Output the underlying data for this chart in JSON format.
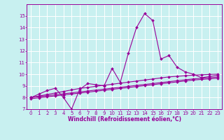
{
  "title": "",
  "xlabel": "Windchill (Refroidissement éolien,°C)",
  "background_color": "#c8f0f0",
  "grid_color": "#ffffff",
  "line_color": "#990099",
  "x_data": [
    0,
    1,
    2,
    3,
    4,
    5,
    6,
    7,
    8,
    9,
    10,
    11,
    12,
    13,
    14,
    15,
    16,
    17,
    18,
    19,
    20,
    21,
    22,
    23
  ],
  "series1": [
    8.0,
    8.3,
    8.6,
    8.8,
    8.0,
    7.0,
    8.7,
    9.2,
    9.1,
    9.0,
    10.5,
    9.3,
    11.8,
    14.0,
    15.2,
    14.6,
    11.3,
    11.6,
    10.6,
    10.2,
    10.0,
    9.7,
    9.8,
    9.9
  ],
  "series2": [
    8.0,
    8.13,
    8.26,
    8.39,
    8.52,
    8.65,
    8.78,
    8.87,
    8.96,
    9.05,
    9.14,
    9.23,
    9.32,
    9.41,
    9.5,
    9.59,
    9.68,
    9.77,
    9.82,
    9.87,
    9.92,
    9.95,
    9.98,
    10.0
  ],
  "series3": [
    8.0,
    8.08,
    8.16,
    8.24,
    8.32,
    8.4,
    8.48,
    8.56,
    8.64,
    8.72,
    8.8,
    8.88,
    8.96,
    9.04,
    9.12,
    9.2,
    9.28,
    9.36,
    9.44,
    9.52,
    9.6,
    9.65,
    9.7,
    9.75
  ],
  "series4": [
    7.9,
    7.98,
    8.06,
    8.14,
    8.22,
    8.3,
    8.38,
    8.46,
    8.54,
    8.62,
    8.7,
    8.78,
    8.86,
    8.94,
    9.02,
    9.1,
    9.18,
    9.26,
    9.34,
    9.42,
    9.5,
    9.55,
    9.6,
    9.65
  ],
  "ylim": [
    7,
    16
  ],
  "xlim": [
    -0.5,
    23.5
  ],
  "yticks": [
    7,
    8,
    9,
    10,
    11,
    12,
    13,
    14,
    15
  ],
  "xticks": [
    0,
    1,
    2,
    3,
    4,
    5,
    6,
    7,
    8,
    9,
    10,
    11,
    12,
    13,
    14,
    15,
    16,
    17,
    18,
    19,
    20,
    21,
    22,
    23
  ],
  "tick_fontsize": 5,
  "xlabel_fontsize": 5.5,
  "linewidth": 0.8,
  "markersize": 2.0
}
